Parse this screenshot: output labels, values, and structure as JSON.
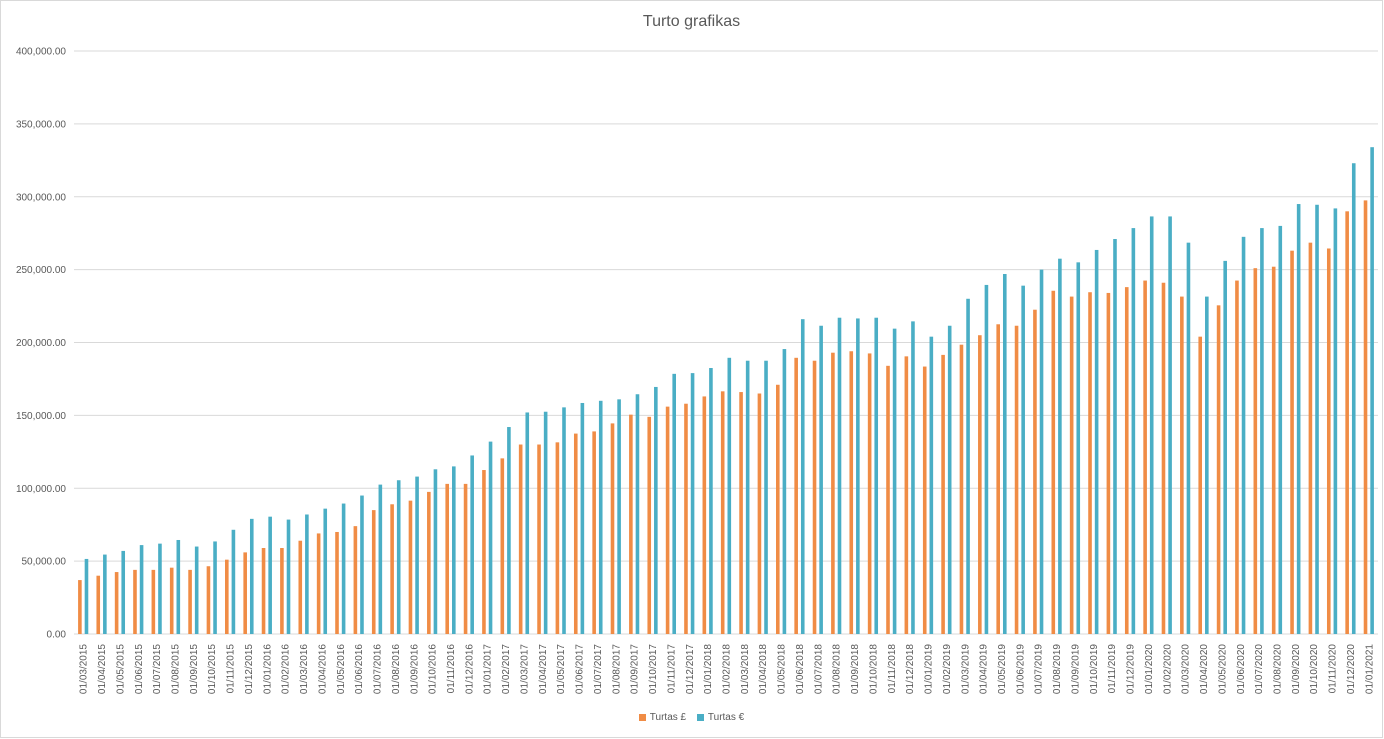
{
  "chart_data": {
    "type": "bar",
    "title": "Turto grafikas",
    "xlabel": "",
    "ylabel": "",
    "ylim": [
      0,
      400000
    ],
    "y_ticks": [
      "0.00",
      "50,000.00",
      "100,000.00",
      "150,000.00",
      "200,000.00",
      "250,000.00",
      "300,000.00",
      "350,000.00",
      "400,000.00"
    ],
    "grid": true,
    "legend_position": "bottom",
    "categories": [
      "01/03/2015",
      "01/04/2015",
      "01/05/2015",
      "01/06/2015",
      "01/07/2015",
      "01/08/2015",
      "01/09/2015",
      "01/10/2015",
      "01/11/2015",
      "01/12/2015",
      "01/01/2016",
      "01/02/2016",
      "01/03/2016",
      "01/04/2016",
      "01/05/2016",
      "01/06/2016",
      "01/07/2016",
      "01/08/2016",
      "01/09/2016",
      "01/10/2016",
      "01/11/2016",
      "01/12/2016",
      "01/01/2017",
      "01/02/2017",
      "01/03/2017",
      "01/04/2017",
      "01/05/2017",
      "01/06/2017",
      "01/07/2017",
      "01/08/2017",
      "01/09/2017",
      "01/10/2017",
      "01/11/2017",
      "01/12/2017",
      "01/01/2018",
      "01/02/2018",
      "01/03/2018",
      "01/04/2018",
      "01/05/2018",
      "01/06/2018",
      "01/07/2018",
      "01/08/2018",
      "01/09/2018",
      "01/10/2018",
      "01/11/2018",
      "01/12/2018",
      "01/01/2019",
      "01/02/2019",
      "01/03/2019",
      "01/04/2019",
      "01/05/2019",
      "01/06/2019",
      "01/07/2019",
      "01/08/2019",
      "01/09/2019",
      "01/10/2019",
      "01/11/2019",
      "01/12/2019",
      "01/01/2020",
      "01/02/2020",
      "01/03/2020",
      "01/04/2020",
      "01/05/2020",
      "01/06/2020",
      "01/07/2020",
      "01/08/2020",
      "01/09/2020",
      "01/10/2020",
      "01/11/2020",
      "01/12/2020",
      "01/01/2021"
    ],
    "series": [
      {
        "name": "Turtas £",
        "color": "#f08c45",
        "values": [
          37000,
          40000,
          42500,
          44000,
          44000,
          45500,
          44000,
          46500,
          51000,
          56000,
          59000,
          59000,
          64000,
          69000,
          70000,
          74000,
          85000,
          89000,
          91500,
          97500,
          103000,
          103000,
          112500,
          120500,
          130000,
          130000,
          131500,
          137500,
          139000,
          144500,
          150500,
          149000,
          156000,
          158000,
          163000,
          166500,
          166000,
          165000,
          171000,
          189500,
          187500,
          193000,
          194000,
          192500,
          184000,
          190500,
          183500,
          191500,
          198500,
          205000,
          212500,
          211500,
          222500,
          235500,
          231500,
          234500,
          234000,
          238000,
          242500,
          241000,
          231500,
          204000,
          225500,
          242500,
          251000,
          252000,
          263000,
          268500,
          264500,
          290000,
          297500
        ]
      },
      {
        "name": "Turtas €",
        "color": "#4aaec5",
        "values": [
          51500,
          54500,
          57000,
          61000,
          62000,
          64500,
          60000,
          63500,
          71500,
          79000,
          80500,
          78500,
          82000,
          86000,
          89500,
          95000,
          102500,
          105500,
          108000,
          113000,
          115000,
          122500,
          132000,
          142000,
          152000,
          152500,
          155500,
          158500,
          160000,
          161000,
          164500,
          169500,
          178500,
          179000,
          182500,
          189500,
          187500,
          187500,
          195500,
          216000,
          211500,
          217000,
          216500,
          217000,
          209500,
          214500,
          204000,
          211500,
          230000,
          239500,
          247000,
          239000,
          250000,
          257500,
          255000,
          263500,
          271000,
          278500,
          286500,
          286500,
          268500,
          231500,
          256000,
          272500,
          278500,
          280000,
          295000,
          294500,
          292000,
          323000,
          334000
        ]
      }
    ]
  }
}
